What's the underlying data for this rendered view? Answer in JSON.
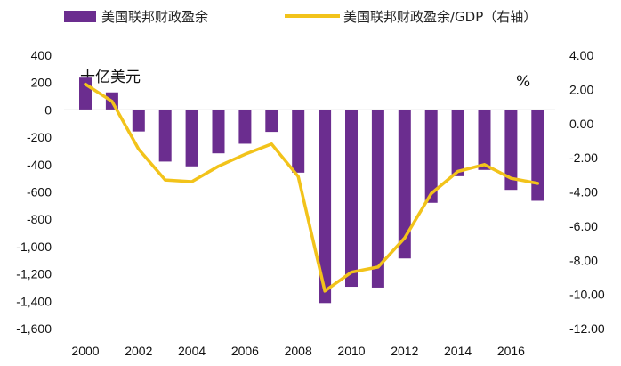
{
  "chart_data": {
    "type": "bar",
    "categories": [
      2000,
      2001,
      2002,
      2003,
      2004,
      2005,
      2006,
      2007,
      2008,
      2009,
      2010,
      2011,
      2012,
      2013,
      2014,
      2015,
      2016,
      2017
    ],
    "x_tick_labels": [
      "2000",
      "2002",
      "2004",
      "2006",
      "2008",
      "2010",
      "2012",
      "2014",
      "2016"
    ],
    "series": [
      {
        "name": "美国联邦财政盈余",
        "type": "bar",
        "axis": "left",
        "color": "#6b2d8f",
        "values": [
          236,
          128,
          -158,
          -378,
          -413,
          -318,
          -248,
          -161,
          -459,
          -1413,
          -1294,
          -1300,
          -1087,
          -680,
          -485,
          -439,
          -585,
          -665
        ]
      },
      {
        "name": "美国联邦财政盈余/GDP（右轴）",
        "type": "line",
        "axis": "right",
        "color": "#f2c31a",
        "values": [
          2.3,
          1.3,
          -1.5,
          -3.3,
          -3.4,
          -2.5,
          -1.8,
          -1.2,
          -3.1,
          -9.8,
          -8.7,
          -8.4,
          -6.7,
          -4.1,
          -2.8,
          -2.4,
          -3.2,
          -3.5
        ]
      }
    ],
    "left_axis": {
      "unit_label": "十亿美元",
      "ylim": [
        -1600,
        400
      ],
      "ticks": [
        400,
        200,
        0,
        -200,
        -400,
        -600,
        -800,
        -1000,
        -1200,
        -1400,
        -1600
      ],
      "tick_labels": [
        "400",
        "200",
        "0",
        "-200",
        "-400",
        "-600",
        "-800",
        "-1,000",
        "-1,200",
        "-1,400",
        "-1,600"
      ]
    },
    "right_axis": {
      "unit_label": "%",
      "ylim": [
        -12,
        4
      ],
      "ticks": [
        4,
        2,
        0,
        -2,
        -4,
        -6,
        -8,
        -10,
        -12
      ],
      "tick_labels": [
        "4.00",
        "2.00",
        "0.00",
        "-2.00",
        "-4.00",
        "-6.00",
        "-8.00",
        "-10.00",
        "-12.00"
      ]
    },
    "legend_position": "top",
    "grid": false
  }
}
